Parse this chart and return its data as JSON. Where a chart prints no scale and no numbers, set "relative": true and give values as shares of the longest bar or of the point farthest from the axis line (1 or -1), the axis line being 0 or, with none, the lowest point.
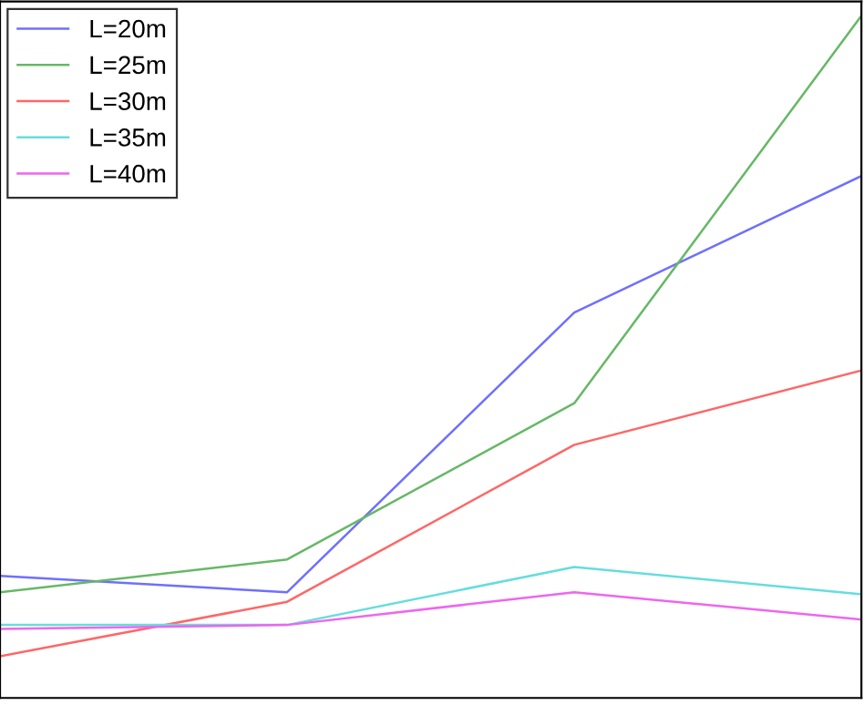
{
  "chart_data": {
    "type": "line",
    "relative": true,
    "categories": [
      null,
      null,
      null,
      null
    ],
    "legend": "top left",
    "grid": false,
    "marker": "none",
    "line_style": "solid",
    "series": [
      {
        "name": "L=20m",
        "color": "#6f6fff",
        "values": [
          0.179,
          0.155,
          0.565,
          0.765
        ]
      },
      {
        "name": "L=25m",
        "color": "#66b866",
        "values": [
          0.155,
          0.203,
          0.432,
          1.0
        ]
      },
      {
        "name": "L=30m",
        "color": "#ff6666",
        "values": [
          0.061,
          0.141,
          0.371,
          0.48
        ]
      },
      {
        "name": "L=35m",
        "color": "#66dddd",
        "values": [
          0.107,
          0.107,
          0.192,
          0.152
        ]
      },
      {
        "name": "L=40m",
        "color": "#ee66ee",
        "values": [
          0.101,
          0.107,
          0.155,
          0.115
        ]
      }
    ]
  }
}
